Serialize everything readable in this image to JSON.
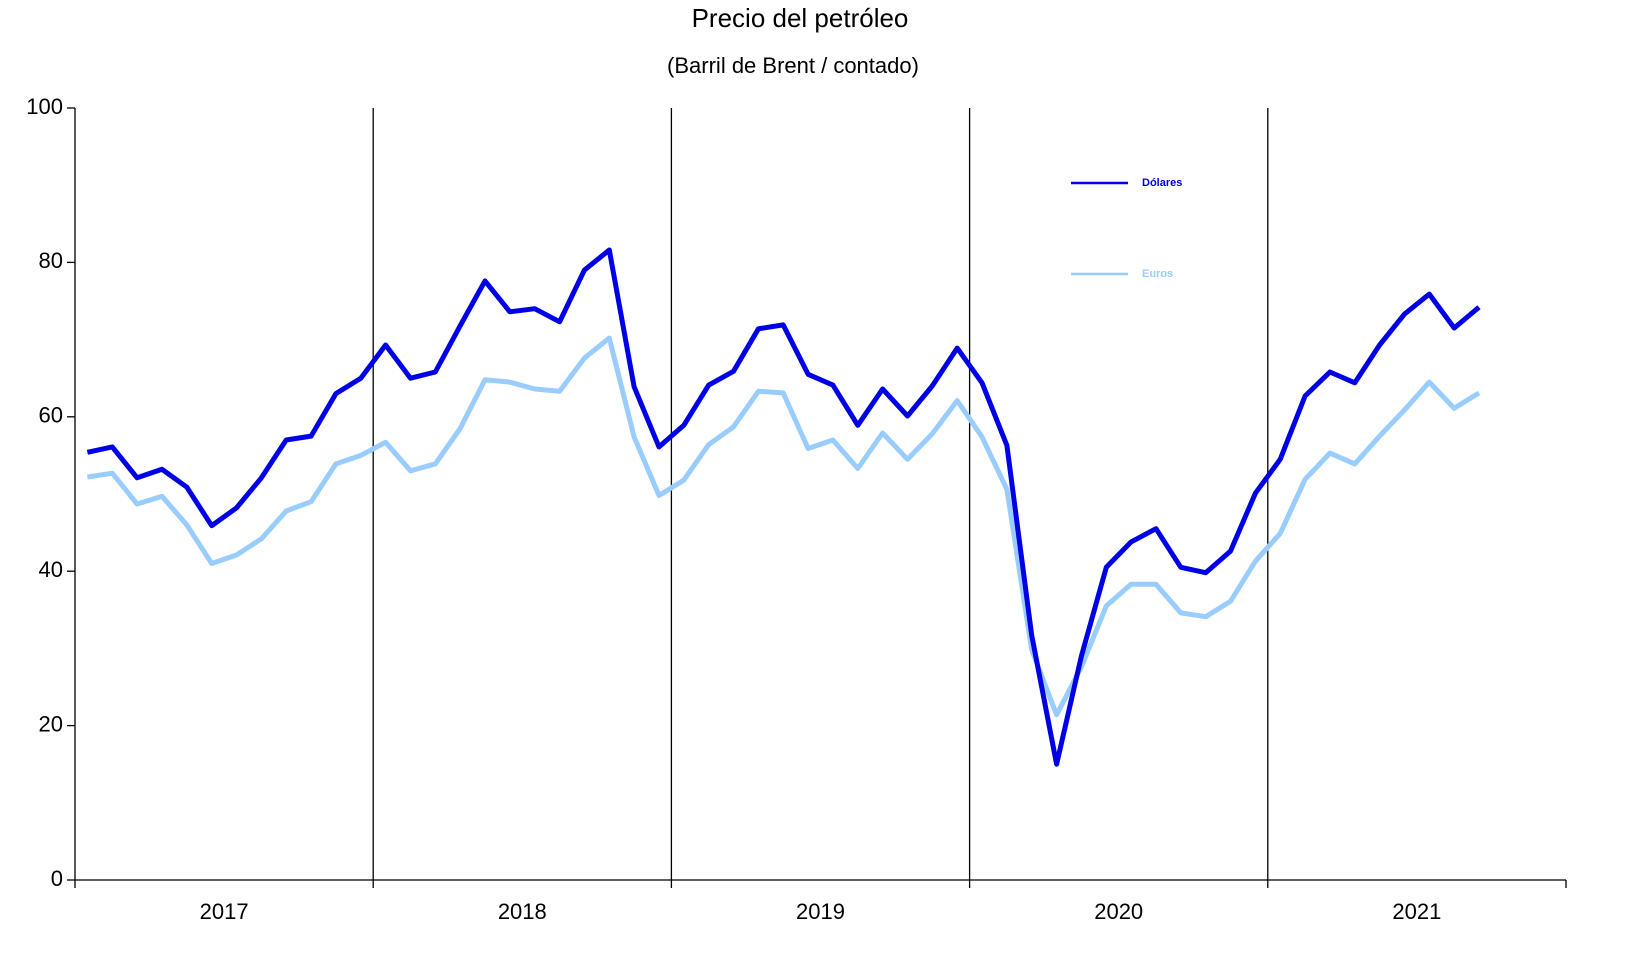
{
  "chart_data": {
    "type": "line",
    "title": "Precio del petróleo",
    "subtitle": "(Barril de Brent / contado)",
    "categories": [
      null,
      null,
      null,
      null,
      null,
      null,
      "2017",
      null,
      null,
      null,
      null,
      null,
      null,
      null,
      null,
      null,
      null,
      null,
      "2018",
      null,
      null,
      null,
      null,
      null,
      null,
      null,
      null,
      null,
      null,
      null,
      "2019",
      null,
      null,
      null,
      null,
      null,
      null,
      null,
      null,
      null,
      null,
      null,
      "2020",
      null,
      null,
      null,
      null,
      null,
      null,
      null,
      null,
      null,
      null,
      null,
      "2021",
      null,
      null
    ],
    "series": [
      {
        "name": "Dólares",
        "color": "#0000e6",
        "values": [
          55.4,
          56.1,
          52.1,
          53.2,
          50.9,
          45.9,
          48.2,
          52.1,
          57.0,
          57.5,
          63.0,
          65.0,
          69.3,
          65.0,
          65.8,
          71.8,
          77.6,
          73.6,
          74.0,
          72.3,
          79.0,
          81.6,
          63.9,
          56.1,
          58.9,
          64.1,
          65.9,
          71.4,
          71.9,
          65.5,
          64.1,
          58.9,
          63.6,
          60.1,
          64.0,
          68.9,
          64.4,
          56.3,
          31.7,
          15.0,
          29.0,
          40.5,
          43.8,
          45.5,
          40.5,
          39.8,
          42.6,
          50.1,
          54.5,
          62.7,
          65.8,
          64.4,
          69.3,
          73.3,
          75.9,
          71.5,
          74.2
        ]
      },
      {
        "name": "Euros",
        "color": "#99ccff",
        "values": [
          52.2,
          52.7,
          48.7,
          49.7,
          46.0,
          41.0,
          42.1,
          44.2,
          47.8,
          49.0,
          53.9,
          55.0,
          56.7,
          53.0,
          53.9,
          58.5,
          64.8,
          64.5,
          63.6,
          63.3,
          67.6,
          70.2,
          57.4,
          49.8,
          51.8,
          56.4,
          58.7,
          63.3,
          63.1,
          55.9,
          57.0,
          53.3,
          57.9,
          54.5,
          57.8,
          62.1,
          57.4,
          50.6,
          29.8,
          21.4,
          27.6,
          35.5,
          38.3,
          38.3,
          34.6,
          34.1,
          36.1,
          41.3,
          44.9,
          51.9,
          55.3,
          53.9,
          57.5,
          60.9,
          64.5,
          61.1,
          63.1
        ]
      }
    ],
    "ylim": [
      0,
      100
    ],
    "yticks": [
      0,
      20,
      40,
      60,
      80,
      100
    ]
  }
}
